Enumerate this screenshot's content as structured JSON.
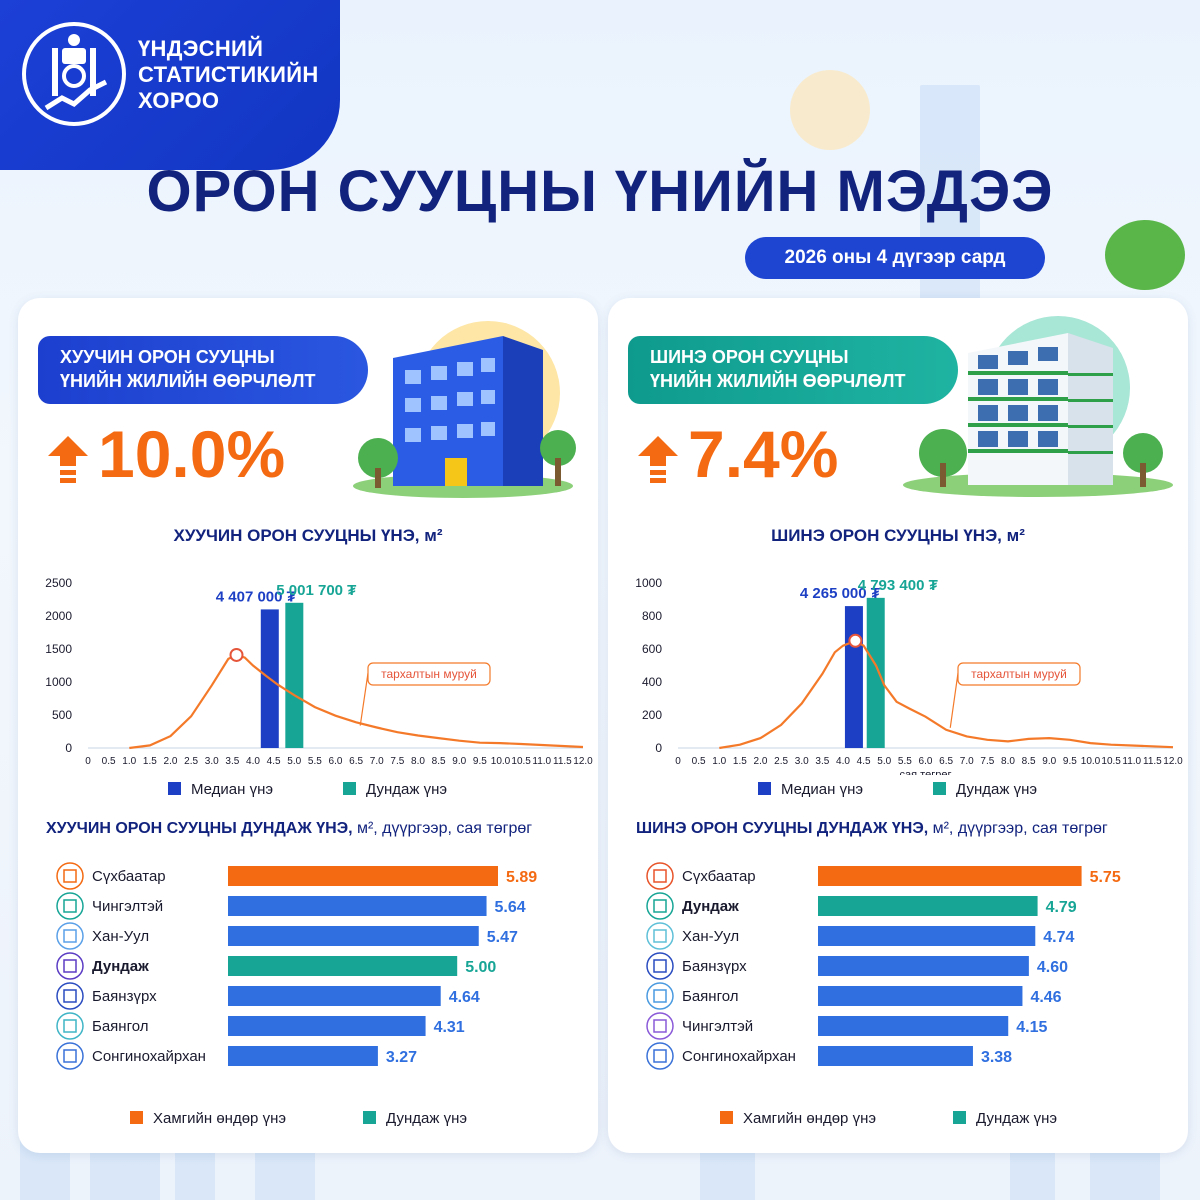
{
  "brand": {
    "line1": "ҮНДЭСНИЙ",
    "line2": "СТАТИСТИКИЙН",
    "line3": "ХОРОО"
  },
  "title": "ОРОН СУУЦНЫ ҮНИЙН МЭДЭЭ",
  "date": "2026 оны 4 дүгээр сард",
  "colors": {
    "median": "#1c3fc4",
    "average": "#17a596",
    "highest": "#f46a12",
    "other": "#2f6fdf",
    "curve": "#f47a2a"
  },
  "left": {
    "head_line1": "ХУУЧИН ОРОН СУУЦНЫ",
    "head_line2": "ҮНИЙН ЖИЛИЙН ӨӨРЧЛӨЛТ",
    "change": "10.0%",
    "chart_title": "ХУУЧИН ОРОН СУУЦНЫ ҮНЭ, м²",
    "curve_label": "тархалтын муруй",
    "legend_median": "Медиан үнэ",
    "legend_average": "Дундаж үнэ",
    "bar_title_bold": "ХУУЧИН ОРОН СУУЦНЫ ДУНДАЖ ҮНЭ,",
    "bar_title_rest": " м², дүүргээр, сая төгрөг",
    "legend_highest": "Хамгийн өндөр үнэ",
    "legend_bar_avg": "Дундаж үнэ"
  },
  "right": {
    "head_line1": "ШИНЭ ОРОН СУУЦНЫ",
    "head_line2": "ҮНИЙН ЖИЛИЙН ӨӨРЧЛӨЛТ",
    "change": "7.4%",
    "chart_title": "ШИНЭ ОРОН СУУЦНЫ ҮНЭ, м²",
    "curve_label": "тархалтын муруй",
    "legend_median": "Медиан үнэ",
    "legend_average": "Дундаж үнэ",
    "bar_title_bold": "ШИНЭ ОРОН СУУЦНЫ ДУНДАЖ ҮНЭ,",
    "bar_title_rest": " м², дүүргээр, сая төгрөг",
    "legend_highest": "Хамгийн өндөр үнэ",
    "legend_bar_avg": "Дундаж үнэ"
  },
  "chart_data": [
    {
      "type": "area",
      "title": "ХУУЧИН ОРОН СУУЦНЫ ҮНЭ, м²",
      "xlabel": "",
      "x_ticks": [
        "0",
        "0.5",
        "1.0",
        "1.5",
        "2.0",
        "2.5",
        "3.0",
        "3.5",
        "4.0",
        "4.5",
        "5.0",
        "5.5",
        "6.0",
        "6.5",
        "7.0",
        "7.5",
        "8.0",
        "8.5",
        "9.0",
        "9.5",
        "10.0",
        "10.5",
        "11.0",
        "11.5",
        "12.0"
      ],
      "xlim": [
        0,
        12
      ],
      "y_ticks": [
        0,
        500,
        1000,
        1500,
        2000,
        2500
      ],
      "ylim": [
        0,
        2500
      ],
      "grid": false,
      "series": [
        {
          "name": "тархалтын муруй",
          "x": [
            1.0,
            1.5,
            2.0,
            2.5,
            3.0,
            3.4,
            3.6,
            3.8,
            4.0,
            4.3,
            4.6,
            5.0,
            5.5,
            6.0,
            6.5,
            7.0,
            7.5,
            8.0,
            8.5,
            9.0,
            9.5,
            10.0,
            10.5,
            11.0,
            11.5,
            12.0
          ],
          "y": [
            0,
            40,
            180,
            480,
            950,
            1350,
            1410,
            1370,
            1250,
            1100,
            960,
            800,
            620,
            490,
            390,
            310,
            240,
            190,
            150,
            110,
            80,
            75,
            60,
            45,
            30,
            15
          ]
        }
      ],
      "markers": [
        {
          "name": "Медиан үнэ",
          "x": 4.407,
          "label": "4 407 000 ₮"
        },
        {
          "name": "Дундаж үнэ",
          "x": 5.0017,
          "label": "5 001 700 ₮"
        }
      ],
      "marker_heights": [
        2100,
        2200
      ]
    },
    {
      "type": "area",
      "title": "ШИНЭ ОРОН СУУЦНЫ ҮНЭ, м²",
      "xlabel": "сая төгрөг",
      "x_ticks": [
        "0",
        "0.5",
        "1.0",
        "1.5",
        "2.0",
        "2.5",
        "3.0",
        "3.5",
        "4.0",
        "4.5",
        "5.0",
        "5.5",
        "6.0",
        "6.5",
        "7.0",
        "7.5",
        "8.0",
        "8.5",
        "9.0",
        "9.5",
        "10.0",
        "10.5",
        "11.0",
        "11.5",
        "12.0"
      ],
      "xlim": [
        0,
        12
      ],
      "y_ticks": [
        0,
        200,
        400,
        600,
        800,
        1000
      ],
      "ylim": [
        0,
        1000
      ],
      "grid": false,
      "series": [
        {
          "name": "тархалтын муруй",
          "x": [
            1.0,
            1.5,
            2.0,
            2.5,
            3.0,
            3.5,
            3.8,
            4.0,
            4.3,
            4.5,
            4.8,
            5.0,
            5.3,
            5.6,
            6.0,
            6.5,
            7.0,
            7.5,
            8.0,
            8.5,
            9.0,
            9.5,
            10.0,
            10.5,
            11.0,
            11.5,
            12.0
          ],
          "y": [
            0,
            20,
            60,
            140,
            270,
            450,
            580,
            620,
            650,
            620,
            500,
            380,
            280,
            240,
            190,
            110,
            70,
            50,
            40,
            55,
            60,
            50,
            30,
            20,
            15,
            10,
            5
          ]
        }
      ],
      "markers": [
        {
          "name": "Медиан үнэ",
          "x": 4.265,
          "label": "4 265 000 ₮"
        },
        {
          "name": "Дундаж үнэ",
          "x": 4.7934,
          "label": "4 793 400 ₮"
        }
      ],
      "marker_heights": [
        860,
        910
      ]
    },
    {
      "type": "bar",
      "title": "ХУУЧИН ОРОН СУУЦНЫ ДУНДАЖ ҮНЭ, м², дүүргээр, сая төгрөг",
      "categories": [
        "Сүхбаатар",
        "Чингэлтэй",
        "Хан-Уул",
        "Дундаж",
        "Баянзүрх",
        "Баянгол",
        "Сонгинохайрхан"
      ],
      "values": [
        5.89,
        5.64,
        5.47,
        5.0,
        4.64,
        4.31,
        3.27
      ],
      "labels": [
        "5.89",
        "5.64",
        "5.47",
        "5.00",
        "4.64",
        "4.31",
        "3.27"
      ],
      "kinds": [
        "highest",
        "other",
        "other",
        "average",
        "other",
        "other",
        "other"
      ],
      "icon_colors": [
        "#f46a12",
        "#17a596",
        "#5aa0e8",
        "#5b3cc4",
        "#2a4cc0",
        "#3fb5c6",
        "#3a72d8"
      ]
    },
    {
      "type": "bar",
      "title": "ШИНЭ ОРОН СУУЦНЫ ДУНДАЖ ҮНЭ, м², дүүргээр, сая төгрөг",
      "categories": [
        "Сүхбаатар",
        "Дундаж",
        "Хан-Уул",
        "Баянзүрх",
        "Баянгол",
        "Чингэлтэй",
        "Сонгинохайрхан"
      ],
      "values": [
        5.75,
        4.79,
        4.74,
        4.6,
        4.46,
        4.15,
        3.38
      ],
      "labels": [
        "5.75",
        "4.79",
        "4.74",
        "4.60",
        "4.46",
        "4.15",
        "3.38"
      ],
      "kinds": [
        "highest",
        "average",
        "other",
        "other",
        "other",
        "other",
        "other"
      ],
      "icon_colors": [
        "#e8542a",
        "#17a596",
        "#5ec0d8",
        "#2a4cc0",
        "#4a9ae0",
        "#8a5ad8",
        "#3a72d8"
      ]
    }
  ]
}
